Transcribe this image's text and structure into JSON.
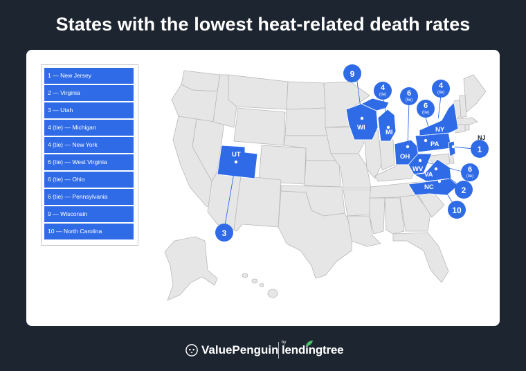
{
  "title": "States with the lowest heat-related death rates",
  "legend": [
    "1 — New Jersey",
    "2 — Virginia",
    "3 — Utah",
    "4 (tie) — Michigan",
    "4 (tie) — New York",
    "6 (tie) — West Virginia",
    "6 (tie) — Ohio",
    "6 (tie) — Pennsylvania",
    "9 — Wisconsin",
    "10 — North Carolina"
  ],
  "state_labels": {
    "ut": "UT",
    "wi": "WI",
    "mi": "MI",
    "oh": "OH",
    "pa": "PA",
    "ny": "NY",
    "wv": "WV",
    "va": "VA",
    "nc": "NC",
    "nj": "NJ"
  },
  "badges": {
    "wi": {
      "rank": "9",
      "tie": ""
    },
    "mi": {
      "rank": "4",
      "tie": "(tie)"
    },
    "oh": {
      "rank": "6",
      "tie": "(tie)"
    },
    "pa": {
      "rank": "6",
      "tie": "(tie)"
    },
    "ny": {
      "rank": "4",
      "tie": "(tie)"
    },
    "nj": {
      "rank": "1",
      "tie": ""
    },
    "wv": {
      "rank": "6",
      "tie": "(tie)"
    },
    "va": {
      "rank": "2",
      "tie": ""
    },
    "nc": {
      "rank": "10",
      "tie": ""
    },
    "ut": {
      "rank": "3",
      "tie": ""
    }
  },
  "footer": {
    "brand": "ValuePenguin",
    "by": "by",
    "partner": "lendingtree"
  },
  "colors": {
    "highlight": "#2f6be6",
    "state_fill": "#e6e6e6",
    "state_stroke": "#b8b8b8",
    "background": "#1d2530"
  }
}
